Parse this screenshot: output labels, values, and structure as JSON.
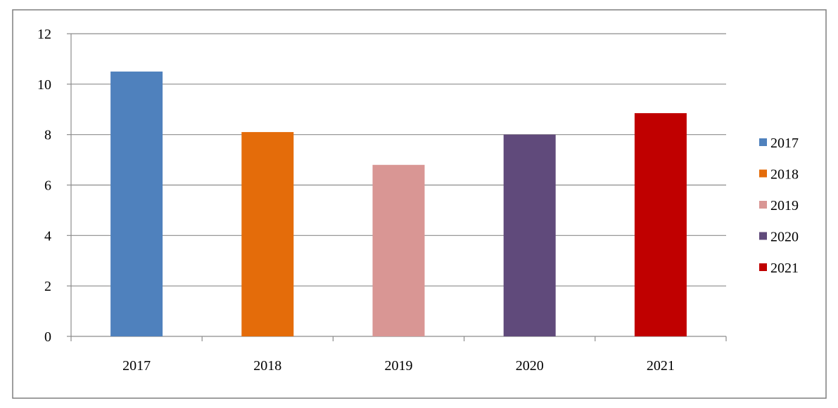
{
  "chart_data": {
    "type": "bar",
    "categories": [
      "2017",
      "2018",
      "2019",
      "2020",
      "2021"
    ],
    "values": [
      10.5,
      8.1,
      6.8,
      8.0,
      8.85
    ],
    "colors": [
      "#4F81BD",
      "#E46C0A",
      "#D99694",
      "#604A7B",
      "#C00000"
    ],
    "ylim": [
      0,
      12
    ],
    "yticks": [
      "0",
      "2",
      "4",
      "6",
      "8",
      "10",
      "12"
    ],
    "grid": true,
    "legend": {
      "position": "right",
      "entries": [
        "2017",
        "2018",
        "2019",
        "2020",
        "2021"
      ]
    }
  }
}
